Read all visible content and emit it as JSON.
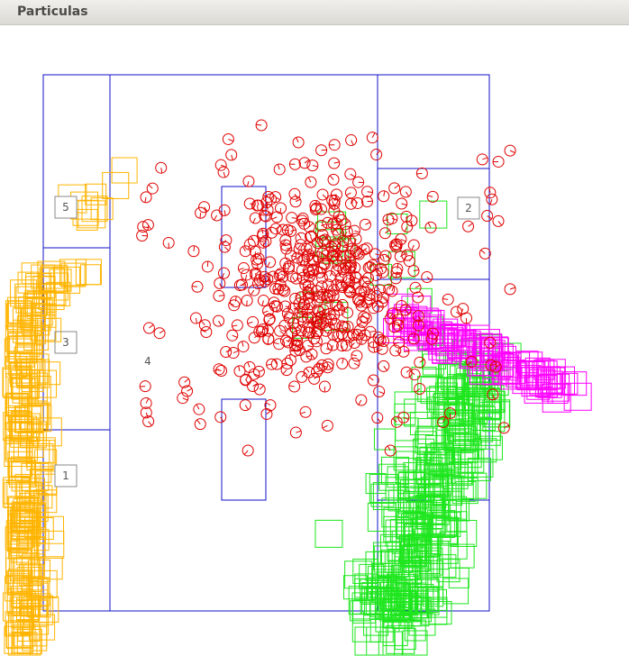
{
  "window": {
    "title": "Particulas"
  },
  "map": {
    "landmarks": [
      {
        "label": "5"
      },
      {
        "label": "2"
      },
      {
        "label": "3"
      },
      {
        "label": "4"
      },
      {
        "label": "1"
      }
    ]
  },
  "colors": {
    "walls": "#1010c8",
    "robot_particles": "#e00000",
    "orange_particles": "#ffb400",
    "green_particles": "#1ee61e",
    "magenta_particles": "#ff00ff",
    "landmark": "#8a8a8a"
  }
}
